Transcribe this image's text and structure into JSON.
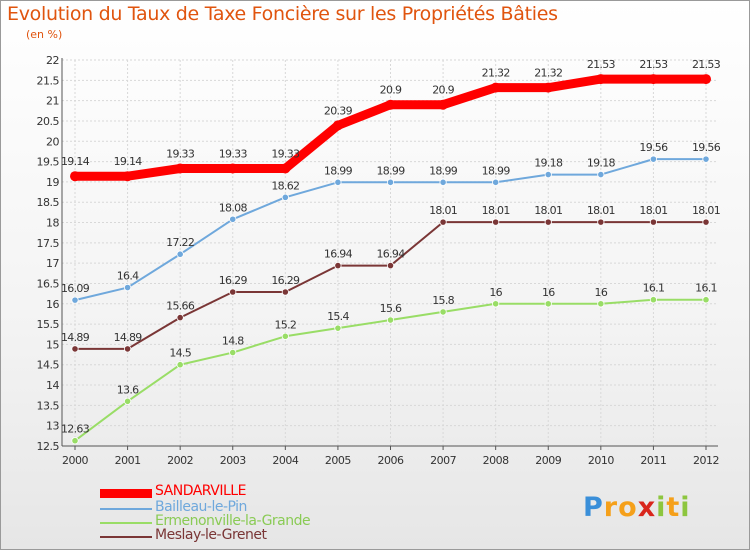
{
  "title": "Evolution du Taux de Taxe Foncière sur les Propriétés Bâties",
  "subtitle": "(en %)",
  "logo": {
    "letters": [
      "P",
      "r",
      "o",
      "x",
      "i",
      "t",
      "i"
    ],
    "colors": [
      "#3a8fd9",
      "#f5a01a",
      "#f5a01a",
      "#d9261c",
      "#8dc63f",
      "#f5a01a",
      "#8dc63f"
    ]
  },
  "chart_data": {
    "type": "line",
    "x": [
      "2000",
      "2001",
      "2002",
      "2003",
      "2004",
      "2005",
      "2006",
      "2007",
      "2008",
      "2009",
      "2010",
      "2011",
      "2012"
    ],
    "ylim": [
      12.5,
      22
    ],
    "yticks": [
      "12.5",
      "13",
      "13.5",
      "14",
      "14.5",
      "15",
      "15.5",
      "16",
      "16.5",
      "17",
      "17.5",
      "18",
      "18.5",
      "19",
      "19.5",
      "20",
      "20.5",
      "21",
      "21.5",
      "22"
    ],
    "grid": true,
    "legend_placement": "bottom-left",
    "series": [
      {
        "name": "SANDARVILLE",
        "color": "#ff0000",
        "values": [
          19.14,
          19.14,
          19.33,
          19.33,
          19.33,
          20.39,
          20.9,
          20.9,
          21.32,
          21.32,
          21.53,
          21.53,
          21.53
        ],
        "labels": [
          "19.14",
          "19.14",
          "19.33",
          "19.33",
          "19.33",
          "20.39",
          "20.9",
          "20.9",
          "21.32",
          "21.32",
          "21.53",
          "21.53",
          "21.53"
        ]
      },
      {
        "name": "Bailleau-le-Pin",
        "color": "#6fa8dc",
        "values": [
          16.09,
          16.4,
          17.22,
          18.08,
          18.62,
          18.99,
          18.99,
          18.99,
          18.99,
          19.18,
          19.18,
          19.56,
          19.56
        ],
        "labels": [
          "16.09",
          "16.4",
          "17.22",
          "18.08",
          "18.62",
          "18.99",
          "18.99",
          "18.99",
          "18.99",
          "19.18",
          "19.18",
          "19.56",
          "19.56"
        ]
      },
      {
        "name": "Ermenonville-la-Grande",
        "color": "#99dd66",
        "values": [
          12.63,
          13.6,
          14.5,
          14.8,
          15.2,
          15.4,
          15.6,
          15.8,
          16,
          16,
          16,
          16.1,
          16.1
        ],
        "labels": [
          "12.63",
          "13.6",
          "14.5",
          "14.8",
          "15.2",
          "15.4",
          "15.6",
          "15.8",
          "16",
          "16",
          "16",
          "16.1",
          "16.1"
        ]
      },
      {
        "name": "Meslay-le-Grenet",
        "color": "#7a3636",
        "values": [
          14.89,
          14.89,
          15.66,
          16.29,
          16.29,
          16.94,
          16.94,
          18.01,
          18.01,
          18.01,
          18.01,
          18.01,
          18.01
        ],
        "labels": [
          "14.89",
          "14.89",
          "15.66",
          "16.29",
          "16.29",
          "16.94",
          "16.94",
          "18.01",
          "18.01",
          "18.01",
          "18.01",
          "18.01",
          "18.01"
        ]
      }
    ]
  }
}
